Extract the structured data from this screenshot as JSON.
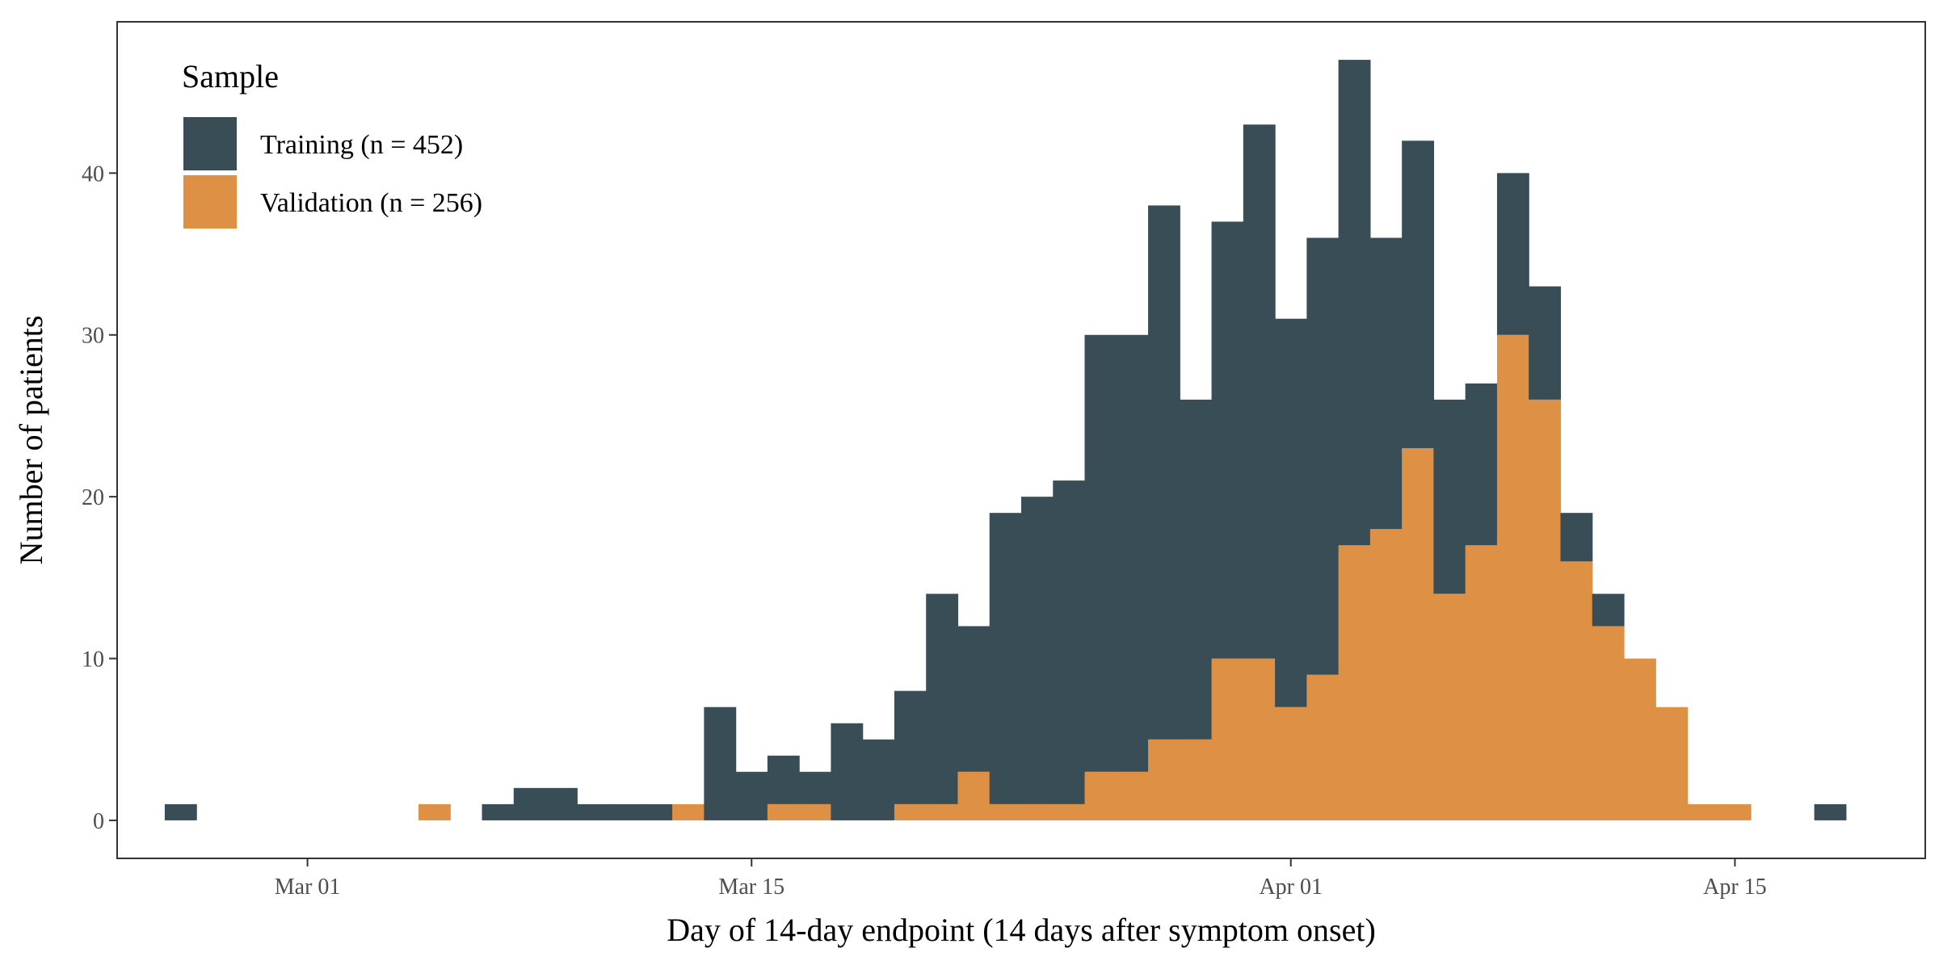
{
  "chart_data": {
    "type": "bar",
    "stacked": true,
    "bin_width_days": 1,
    "x": [
      "2020-02-26",
      "2020-02-27",
      "2020-02-28",
      "2020-02-29",
      "2020-03-01",
      "2020-03-02",
      "2020-03-03",
      "2020-03-04",
      "2020-03-05",
      "2020-03-06",
      "2020-03-07",
      "2020-03-08",
      "2020-03-09",
      "2020-03-10",
      "2020-03-11",
      "2020-03-12",
      "2020-03-13",
      "2020-03-14",
      "2020-03-15",
      "2020-03-16",
      "2020-03-17",
      "2020-03-18",
      "2020-03-19",
      "2020-03-20",
      "2020-03-21",
      "2020-03-22",
      "2020-03-23",
      "2020-03-24",
      "2020-03-25",
      "2020-03-26",
      "2020-03-27",
      "2020-03-28",
      "2020-03-29",
      "2020-03-30",
      "2020-03-31",
      "2020-04-01",
      "2020-04-02",
      "2020-04-03",
      "2020-04-04",
      "2020-04-05",
      "2020-04-06",
      "2020-04-07",
      "2020-04-08",
      "2020-04-09",
      "2020-04-10",
      "2020-04-11",
      "2020-04-12",
      "2020-04-13",
      "2020-04-14",
      "2020-04-15",
      "2020-04-16",
      "2020-04-17",
      "2020-04-18"
    ],
    "series": [
      {
        "name": "Validation (n = 256)",
        "color": "#DE9045",
        "values": [
          0,
          0,
          0,
          0,
          0,
          0,
          0,
          0,
          1,
          0,
          0,
          0,
          0,
          0,
          0,
          0,
          1,
          0,
          0,
          1,
          1,
          0,
          0,
          1,
          1,
          3,
          1,
          1,
          1,
          3,
          3,
          5,
          5,
          10,
          10,
          7,
          9,
          17,
          18,
          23,
          14,
          17,
          30,
          26,
          16,
          12,
          10,
          7,
          1,
          1,
          0,
          0,
          0
        ]
      },
      {
        "name": "Training (n = 452)",
        "color": "#384D55",
        "values": [
          1,
          0,
          0,
          0,
          0,
          0,
          0,
          0,
          0,
          0,
          1,
          2,
          2,
          1,
          1,
          1,
          0,
          7,
          3,
          3,
          2,
          6,
          5,
          7,
          13,
          9,
          18,
          19,
          20,
          27,
          27,
          33,
          21,
          27,
          33,
          24,
          27,
          30,
          18,
          19,
          12,
          10,
          10,
          7,
          3,
          2,
          0,
          0,
          0,
          0,
          0,
          0,
          1
        ]
      }
    ],
    "stack_order": [
      "Validation (n = 256)",
      "Training (n = 452)"
    ],
    "xlim": [
      "2020-02-24",
      "2020-04-21"
    ],
    "ylim": [
      -2.35,
      49.35
    ],
    "x_ticks": [
      {
        "date": "2020-03-01",
        "label": "Mar 01"
      },
      {
        "date": "2020-03-15",
        "label": "Mar 15"
      },
      {
        "date": "2020-04-01",
        "label": "Apr 01"
      },
      {
        "date": "2020-04-15",
        "label": "Apr 15"
      }
    ],
    "y_ticks": [
      0,
      10,
      20,
      30,
      40
    ],
    "xlabel": "Day of 14-day endpoint (14 days after symptom onset)",
    "ylabel": "Number of patients",
    "grid": false,
    "legend": {
      "title": "Sample",
      "placement": "top-left",
      "entries": [
        {
          "label": "Training (n = 452)",
          "color": "#384D55"
        },
        {
          "label": "Validation (n = 256)",
          "color": "#DE9045"
        }
      ]
    }
  }
}
